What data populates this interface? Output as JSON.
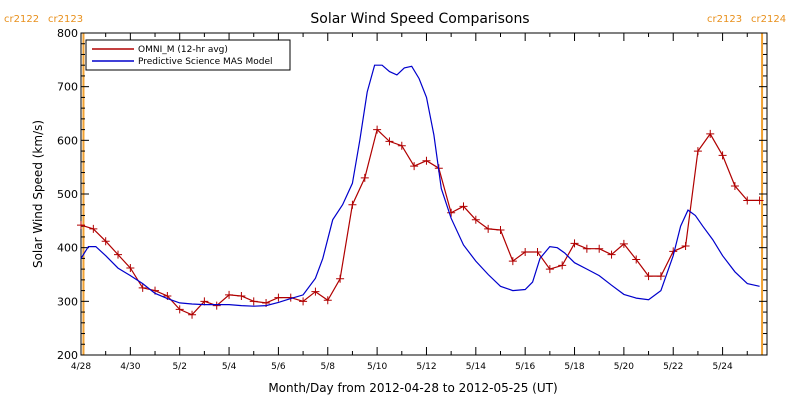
{
  "chart_data": {
    "type": "line",
    "title": "Solar Wind Speed Comparisons",
    "xlabel": "Month/Day from 2012-04-28 to 2012-05-25 (UT)",
    "ylabel": "Solar Wind Speed (km/s)",
    "xlim": [
      0,
      27.8
    ],
    "ylim": [
      200,
      800
    ],
    "yticks": [
      200,
      300,
      400,
      500,
      600,
      700,
      800
    ],
    "xticks": [
      {
        "day": 0,
        "label": "4/28"
      },
      {
        "day": 2,
        "label": "4/30"
      },
      {
        "day": 4,
        "label": "5/2"
      },
      {
        "day": 6,
        "label": "5/4"
      },
      {
        "day": 8,
        "label": "5/6"
      },
      {
        "day": 10,
        "label": "5/8"
      },
      {
        "day": 12,
        "label": "5/10"
      },
      {
        "day": 14,
        "label": "5/12"
      },
      {
        "day": 16,
        "label": "5/14"
      },
      {
        "day": 18,
        "label": "5/16"
      },
      {
        "day": 20,
        "label": "5/18"
      },
      {
        "day": 22,
        "label": "5/20"
      },
      {
        "day": 24,
        "label": "5/22"
      },
      {
        "day": 26,
        "label": "5/24"
      }
    ],
    "carrington_markers": [
      {
        "day": 0.1,
        "left_label": "cr2122",
        "right_label": "cr2123",
        "side": "left"
      },
      {
        "day": 27.6,
        "left_label": "cr2123",
        "right_label": "cr2124",
        "side": "right"
      }
    ],
    "legend_position": "top-left",
    "series": [
      {
        "name": "OMNI_M (12-hr avg)",
        "color": "#b00000",
        "marker": "plus",
        "x": [
          0.0,
          0.5,
          1.0,
          1.5,
          2.0,
          2.5,
          3.0,
          3.5,
          4.0,
          4.5,
          5.0,
          5.5,
          6.0,
          6.5,
          7.0,
          7.5,
          8.0,
          8.5,
          9.0,
          9.5,
          10.0,
          10.5,
          11.0,
          11.5,
          12.0,
          12.5,
          13.0,
          13.5,
          14.0,
          14.5,
          15.0,
          15.5,
          16.0,
          16.5,
          17.0,
          17.5,
          18.0,
          18.5,
          19.0,
          19.5,
          20.0,
          20.5,
          21.0,
          21.5,
          22.0,
          22.5,
          23.0,
          23.5,
          24.0,
          24.5,
          25.0,
          25.5,
          26.0,
          26.5,
          27.0,
          27.5
        ],
        "values": [
          442,
          435,
          412,
          387,
          362,
          325,
          320,
          310,
          285,
          275,
          300,
          292,
          312,
          310,
          300,
          297,
          307,
          307,
          300,
          318,
          302,
          342,
          480,
          530,
          620,
          598,
          590,
          552,
          562,
          548,
          465,
          477,
          452,
          435,
          433,
          375,
          392,
          392,
          360,
          367,
          408,
          398,
          398,
          387,
          407,
          378,
          347,
          347,
          393,
          403,
          580,
          612,
          572,
          515,
          488,
          488
        ]
      },
      {
        "name": "Predictive Science MAS Model",
        "color": "#0000cc",
        "marker": "none",
        "x": [
          0.0,
          0.3,
          0.6,
          1.0,
          1.5,
          2.0,
          2.5,
          3.0,
          3.5,
          4.0,
          4.5,
          5.0,
          5.5,
          6.0,
          6.5,
          7.0,
          7.5,
          8.0,
          8.5,
          9.0,
          9.5,
          9.8,
          10.2,
          10.6,
          11.0,
          11.3,
          11.6,
          11.9,
          12.2,
          12.5,
          12.8,
          13.1,
          13.4,
          13.7,
          14.0,
          14.3,
          14.6,
          15.0,
          15.5,
          16.0,
          16.5,
          17.0,
          17.5,
          18.0,
          18.3,
          18.6,
          19.0,
          19.3,
          19.6,
          20.0,
          20.5,
          21.0,
          21.5,
          22.0,
          22.5,
          23.0,
          23.5,
          24.0,
          24.3,
          24.6,
          24.9,
          25.2,
          25.6,
          26.0,
          26.5,
          27.0,
          27.5
        ],
        "values": [
          380,
          402,
          402,
          385,
          362,
          348,
          333,
          315,
          305,
          297,
          295,
          294,
          294,
          294,
          292,
          291,
          292,
          298,
          305,
          312,
          343,
          380,
          452,
          480,
          520,
          600,
          690,
          740,
          740,
          728,
          722,
          735,
          738,
          715,
          680,
          610,
          510,
          455,
          405,
          375,
          350,
          328,
          320,
          322,
          336,
          380,
          402,
          400,
          390,
          372,
          360,
          348,
          330,
          313,
          306,
          303,
          320,
          385,
          440,
          470,
          460,
          440,
          415,
          385,
          355,
          333,
          328
        ]
      }
    ]
  }
}
